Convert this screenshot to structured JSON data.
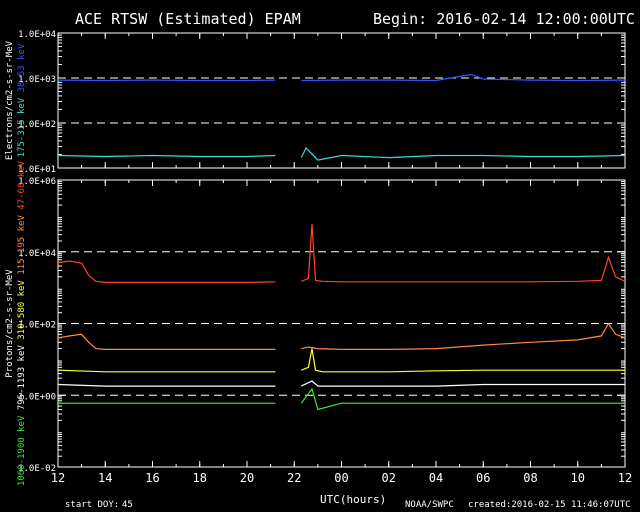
{
  "header": {
    "title": "ACE RTSW (Estimated) EPAM",
    "begin": "Begin: 2016-02-14 12:00:00UTC"
  },
  "footer": {
    "start_doy_label": "start DOY:",
    "start_doy_value": "45",
    "xlabel": "UTC(hours)",
    "source": "NOAA/SWPC",
    "created": "created:2016-02-15 11:46:07UTC"
  },
  "colors": {
    "background": "#000000",
    "axes": "#ffffff",
    "e1": "#3355ff",
    "e2": "#33dddd",
    "p1": "#ff4422",
    "p2": "#ff8844",
    "p3": "#ffff33",
    "p4": "#ffffff",
    "p5": "#33ee33"
  },
  "chart_data": [
    {
      "type": "line",
      "panel": "electrons",
      "ylabel": "Electrons/cm2-s-sr-MeV",
      "yscale": "log",
      "ylim": [
        10,
        10000
      ],
      "yticks": [
        "1.0E+01",
        "1.0E+02",
        "1.0E+03",
        "1.0E+04"
      ],
      "xlim": [
        12,
        36
      ],
      "xticks": [
        "12",
        "14",
        "16",
        "18",
        "20",
        "22",
        "00",
        "02",
        "04",
        "06",
        "08",
        "10",
        "12"
      ],
      "dashed_reference_levels": [
        1000,
        100
      ],
      "data_gap_hours": [
        21.2,
        22.3
      ],
      "series": [
        {
          "name": "38-53 keV",
          "x": [
            12,
            14,
            16,
            18,
            20,
            21.2,
            22.3,
            24,
            26,
            28,
            29.5,
            30,
            32,
            34,
            36
          ],
          "y": [
            900,
            880,
            900,
            880,
            880,
            900,
            880,
            900,
            900,
            880,
            1200,
            950,
            900,
            880,
            900
          ]
        },
        {
          "name": "175-315 keV",
          "x": [
            12,
            14,
            16,
            18,
            20,
            21.2,
            22.3,
            22.5,
            23,
            24,
            26,
            28,
            30,
            32,
            34,
            36
          ],
          "y": [
            19,
            18,
            19,
            18,
            18,
            19,
            17,
            28,
            15,
            19,
            17,
            19,
            19,
            18,
            18,
            19
          ]
        }
      ]
    },
    {
      "type": "line",
      "panel": "protons",
      "ylabel": "Protons/cm2-s-sr-MeV",
      "yscale": "log",
      "ylim": [
        0.01,
        1000000
      ],
      "yticks": [
        "1.0E-02",
        "1.0E+00",
        "1.0E+02",
        "1.0E+04",
        "1.0E+06"
      ],
      "xlim": [
        12,
        36
      ],
      "xticks": [
        "12",
        "14",
        "16",
        "18",
        "20",
        "22",
        "00",
        "02",
        "04",
        "06",
        "08",
        "10",
        "12"
      ],
      "dashed_reference_levels": [
        10000,
        100,
        1
      ],
      "data_gap_hours": [
        21.2,
        22.3
      ],
      "series": [
        {
          "name": "47-68 keV",
          "x": [
            12,
            12.5,
            13,
            13.3,
            13.6,
            14,
            16,
            18,
            20,
            21.2,
            22.3,
            22.6,
            22.75,
            22.9,
            23.2,
            24,
            26,
            28,
            30,
            32,
            34,
            35,
            35.3,
            35.6,
            36
          ],
          "y": [
            5000,
            5500,
            4800,
            2200,
            1500,
            1400,
            1400,
            1400,
            1400,
            1450,
            1500,
            1800,
            60000,
            1600,
            1500,
            1450,
            1450,
            1450,
            1450,
            1450,
            1500,
            1600,
            7000,
            2000,
            1500
          ]
        },
        {
          "name": "115-195 keV",
          "x": [
            12,
            12.5,
            13,
            13.3,
            13.6,
            14,
            16,
            18,
            20,
            21.2,
            22.3,
            22.6,
            23,
            24,
            26,
            28,
            30,
            32,
            34,
            35,
            35.3,
            35.6,
            36
          ],
          "y": [
            40,
            45,
            50,
            30,
            20,
            19,
            19,
            19,
            19,
            19,
            20,
            22,
            20,
            19,
            19,
            20,
            25,
            30,
            35,
            45,
            100,
            50,
            40
          ]
        },
        {
          "name": "310-580 keV",
          "x": [
            12,
            14,
            16,
            18,
            20,
            21.2,
            22.3,
            22.6,
            22.75,
            22.9,
            23.2,
            24,
            26,
            28,
            30,
            32,
            34,
            36
          ],
          "y": [
            5,
            4.5,
            4.5,
            4.5,
            4.5,
            4.5,
            5,
            6,
            20,
            5,
            4.5,
            4.5,
            4.5,
            4.8,
            5,
            5,
            5,
            5
          ]
        },
        {
          "name": "795-1193 keV",
          "x": [
            12,
            14,
            16,
            18,
            20,
            21.2,
            22.3,
            22.75,
            23,
            24,
            26,
            28,
            30,
            32,
            34,
            36
          ],
          "y": [
            2,
            1.8,
            1.8,
            1.8,
            1.8,
            1.8,
            1.8,
            2.5,
            1.8,
            1.8,
            1.8,
            1.8,
            2,
            2,
            2,
            2
          ]
        },
        {
          "name": "1060-1900 keV",
          "x": [
            12,
            14,
            16,
            18,
            20,
            21.2,
            22.3,
            22.75,
            23,
            24,
            26,
            28,
            30,
            32,
            34,
            36
          ],
          "y": [
            0.6,
            0.6,
            0.6,
            0.6,
            0.6,
            0.6,
            0.6,
            1.5,
            0.4,
            0.6,
            0.6,
            0.6,
            0.6,
            0.6,
            0.6,
            0.6
          ]
        }
      ]
    }
  ]
}
